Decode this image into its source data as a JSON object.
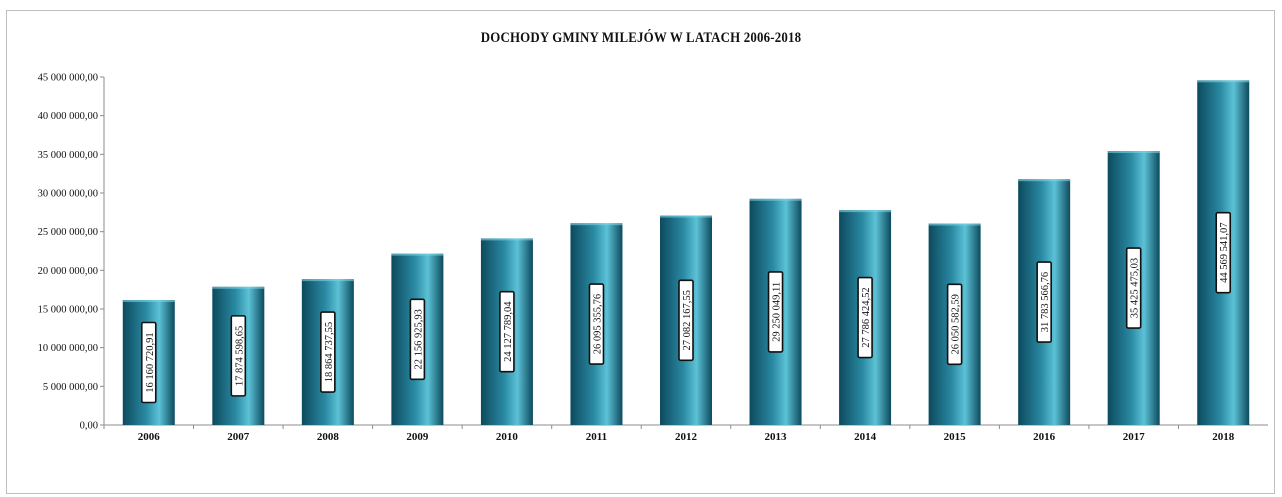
{
  "chart_data": {
    "type": "bar",
    "title": "DOCHODY GMINY  MILEJÓW W LATACH 2006-2018",
    "xlabel": "",
    "ylabel": "",
    "ylim": [
      0,
      45000000
    ],
    "yticks": [
      0,
      5000000,
      10000000,
      15000000,
      20000000,
      25000000,
      30000000,
      35000000,
      40000000,
      45000000
    ],
    "ytick_labels": [
      "0,00",
      "5 000 000,00",
      "10 000 000,00",
      "15 000 000,00",
      "20 000 000,00",
      "25 000 000,00",
      "30 000 000,00",
      "35 000 000,00",
      "40 000 000,00",
      "45 000 000,00"
    ],
    "categories": [
      "2006",
      "2007",
      "2008",
      "2009",
      "2010",
      "2011",
      "2012",
      "2013",
      "2014",
      "2015",
      "2016",
      "2017",
      "2018"
    ],
    "values": [
      16160720.91,
      17874598.65,
      18864737.55,
      22156925.93,
      24127789.04,
      26095355.76,
      27082167.55,
      29250049.11,
      27786424.52,
      26050582.59,
      31783566.76,
      35425475.03,
      44569541.07
    ],
    "data_labels": [
      "16 160 720,91",
      "17 874 598,65",
      "18 864 737,55",
      "22 156 925,93",
      "24 127 789,04",
      "26 095 355,76",
      "27 082 167,55",
      "29 250 049,11",
      "27 786 424,52",
      "26 050 582,59",
      "31 783 566,76",
      "35 425 475,03",
      "44 569 541,07"
    ],
    "grid": false,
    "legend": "none",
    "colors": {
      "bar_dark": "#0d4a5e",
      "bar_mid": "#2a8aa3",
      "bar_light": "#5cc2d6",
      "label_box_border": "#111111"
    }
  }
}
